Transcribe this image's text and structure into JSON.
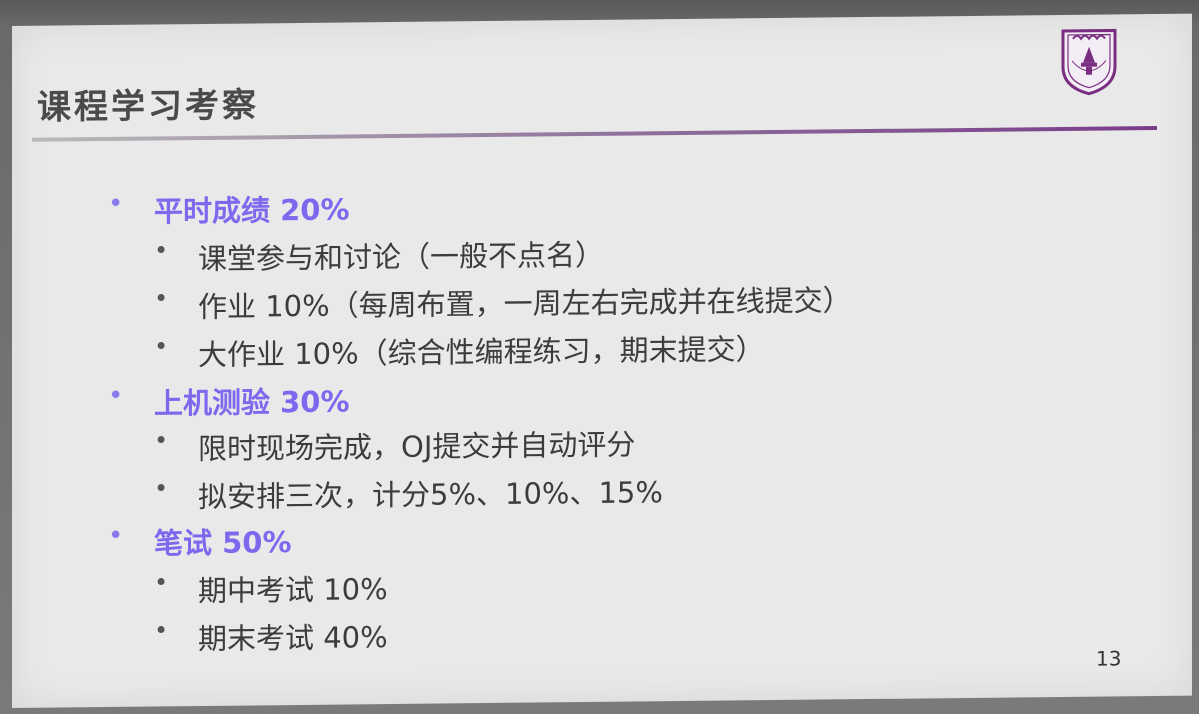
{
  "slide": {
    "title": "课程学习考察",
    "page_number": "13",
    "accent_color": "#7e68ee",
    "items": [
      {
        "level": 1,
        "text": "平时成绩 20%"
      },
      {
        "level": 2,
        "text": "课堂参与和讨论（一般不点名）"
      },
      {
        "level": 2,
        "text": "作业 10%（每周布置，一周左右完成并在线提交）"
      },
      {
        "level": 2,
        "text": "大作业 10%（综合性编程练习，期末提交）"
      },
      {
        "level": 1,
        "text": "上机测验 30%"
      },
      {
        "level": 2,
        "text": "限时现场完成，OJ提交并自动评分"
      },
      {
        "level": 2,
        "text": "拟安排三次，计分5%、10%、15%"
      },
      {
        "level": 1,
        "text": "笔试 50%"
      },
      {
        "level": 2,
        "text": "期中考试 10%"
      },
      {
        "level": 2,
        "text": "期末考试 40%"
      }
    ]
  }
}
